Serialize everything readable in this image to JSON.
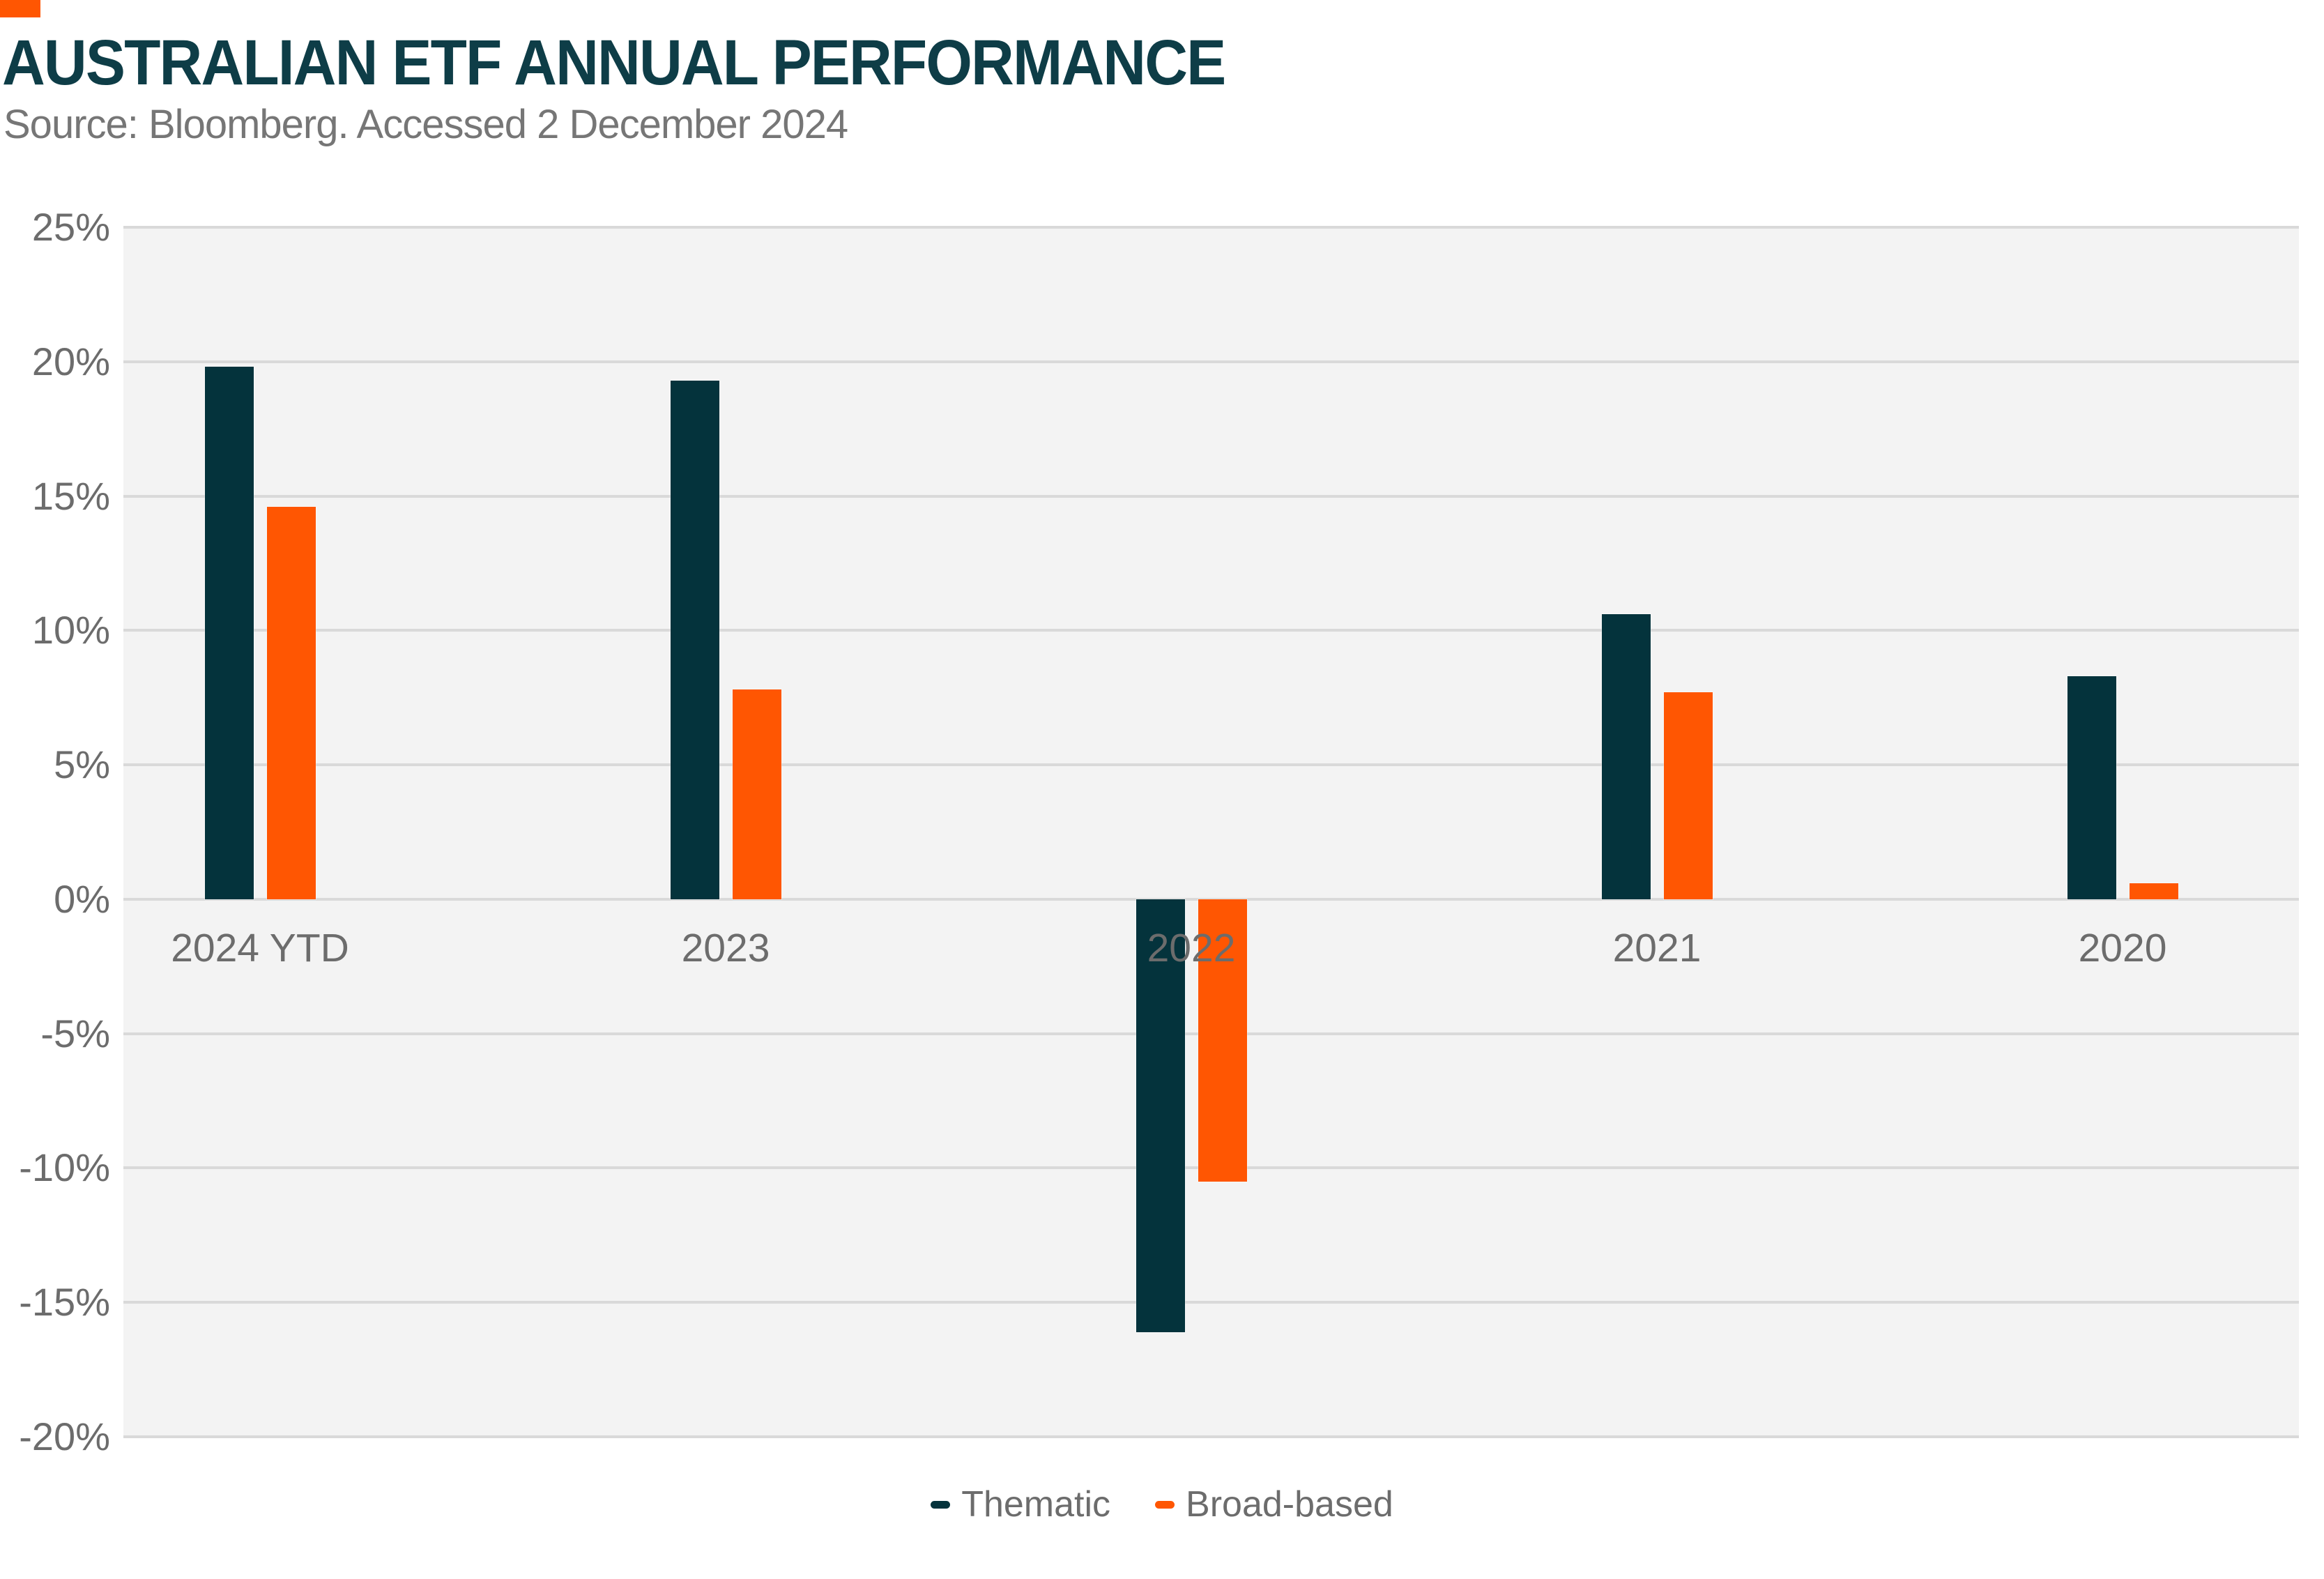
{
  "header": {
    "title": "AUSTRALIAN ETF ANNUAL PERFORMANCE",
    "subtitle": "Source: Bloomberg. Accessed 2 December 2024",
    "accent_color": "#FF5602",
    "title_color": "#0E3D47",
    "subtitle_color": "#767676"
  },
  "chart_data": {
    "type": "bar",
    "title": "AUSTRALIAN ETF ANNUAL PERFORMANCE",
    "subtitle": "Source: Bloomberg. Accessed 2 December 2024",
    "categories": [
      "2024 YTD",
      "2023",
      "2022",
      "2021",
      "2020"
    ],
    "series": [
      {
        "name": "Thematic",
        "color": "#04333C",
        "values": [
          19.8,
          19.3,
          -16.1,
          10.6,
          8.3
        ]
      },
      {
        "name": "Broad-based",
        "color": "#FF5602",
        "values": [
          14.6,
          7.8,
          -10.5,
          7.7,
          0.6
        ]
      }
    ],
    "xlabel": "",
    "ylabel": "",
    "ylim": [
      -20,
      25
    ],
    "yticks": [
      25,
      20,
      15,
      10,
      5,
      0,
      -5,
      -10,
      -15,
      -20
    ],
    "ytick_suffix": "%",
    "grid": "horizontal",
    "legend_position": "bottom-center",
    "plot_bg": "#F3F3F3",
    "gridline_color": "#D9D9D9",
    "axis_label_color": "#6C6C6C",
    "legend_label_color": "#6C6C6C"
  }
}
